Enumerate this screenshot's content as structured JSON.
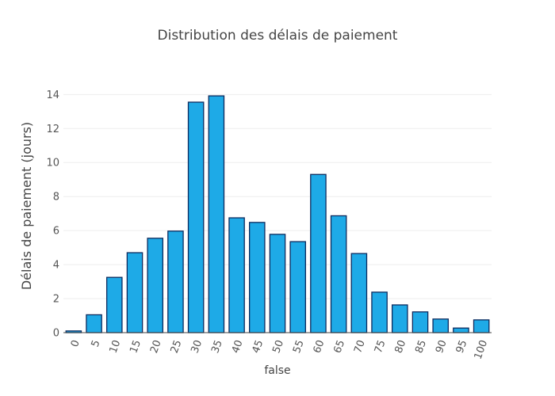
{
  "chart_data": {
    "type": "bar",
    "title": "Distribution des délais de paiement",
    "xlabel": "false",
    "ylabel": "Délais de paiement (jours)",
    "categories": [
      "0",
      "5",
      "10",
      "15",
      "20",
      "25",
      "30",
      "35",
      "40",
      "45",
      "50",
      "55",
      "60",
      "65",
      "70",
      "75",
      "80",
      "85",
      "90",
      "95",
      "100"
    ],
    "values": [
      0.1,
      1.05,
      3.25,
      4.7,
      5.55,
      5.97,
      13.55,
      13.92,
      6.75,
      6.48,
      5.78,
      5.35,
      9.3,
      6.87,
      4.65,
      2.38,
      1.63,
      1.22,
      0.8,
      0.27,
      0.75
    ],
    "yticks": [
      0,
      2,
      4,
      6,
      8,
      10,
      12,
      14
    ],
    "ylim": [
      0,
      14.9
    ],
    "grid": true,
    "bar_color": "#1eaae7",
    "bar_edge_color": "#0d2b5e"
  }
}
